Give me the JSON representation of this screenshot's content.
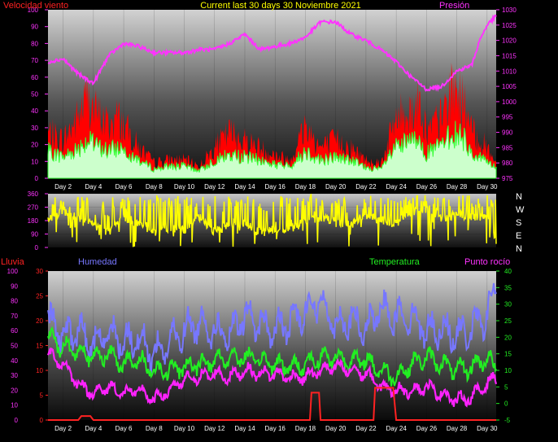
{
  "title": "Current last 30 days 30 Noviembre 2021",
  "colors": {
    "wind_gust": "#ff0000",
    "wind_avg": "#33ff33",
    "wind_fill": "#ccffcc",
    "pressure": "#ff33ff",
    "direction": "#ffff00",
    "humidity": "#7777ff",
    "temperature": "#22ee22",
    "dewpoint": "#ff22ff",
    "rain": "#ff2222",
    "axis_text": "#ff33ff"
  },
  "x_ticks": [
    "Day 2",
    "Day 4",
    "Day 6",
    "Day 8",
    "Day 10",
    "Day 12",
    "Day 14",
    "Day 16",
    "Day 18",
    "Day 20",
    "Day 22",
    "Day 24",
    "Day 26",
    "Day 28",
    "Day 30"
  ],
  "chart_data": [
    {
      "type": "area",
      "id": "wind_pressure",
      "left_label": "Velocidad viento",
      "right_label": "Presión",
      "y_left_range": [
        0,
        100
      ],
      "y_left_ticks": [
        "0",
        "10",
        "20",
        "30",
        "40",
        "50",
        "60",
        "70",
        "80",
        "90",
        "100"
      ],
      "y_right_range": [
        975,
        1030
      ],
      "y_right_ticks": [
        "975",
        "980",
        "985",
        "990",
        "995",
        "1000",
        "1005",
        "1010",
        "1015",
        "1020",
        "1025",
        "1030"
      ],
      "x_range": [
        1,
        30.6
      ],
      "series": [
        {
          "role": "wind_gust",
          "x": [
            1,
            2,
            3,
            3.6,
            4,
            5,
            5.6,
            6,
            7,
            8,
            9,
            10,
            11,
            12,
            13,
            14,
            15,
            16,
            17,
            18,
            19,
            20,
            21,
            22,
            23,
            23.5,
            24,
            25,
            25.6,
            26,
            27,
            27.6,
            28,
            28.6,
            29,
            30,
            30.6
          ],
          "values": [
            30,
            25,
            40,
            55,
            45,
            35,
            40,
            35,
            20,
            10,
            12,
            12,
            8,
            20,
            30,
            25,
            20,
            15,
            12,
            35,
            20,
            25,
            20,
            12,
            10,
            25,
            40,
            45,
            50,
            30,
            40,
            55,
            60,
            45,
            30,
            20,
            10
          ]
        },
        {
          "role": "wind_avg",
          "x": [
            1,
            2,
            3,
            3.6,
            4,
            5,
            5.6,
            6,
            7,
            8,
            9,
            10,
            11,
            12,
            13,
            14,
            15,
            16,
            17,
            18,
            19,
            20,
            21,
            22,
            23,
            23.5,
            24,
            25,
            25.6,
            26,
            27,
            27.6,
            28,
            28.6,
            29,
            30,
            30.6
          ],
          "values": [
            18,
            14,
            20,
            25,
            22,
            18,
            20,
            20,
            12,
            6,
            8,
            8,
            5,
            12,
            15,
            14,
            12,
            9,
            8,
            18,
            12,
            14,
            12,
            7,
            6,
            14,
            20,
            24,
            26,
            16,
            22,
            28,
            30,
            24,
            16,
            12,
            6
          ]
        },
        {
          "role": "pressure",
          "x": [
            1,
            2,
            3,
            4,
            5,
            6,
            7,
            8,
            9,
            10,
            11,
            12,
            13,
            14,
            15,
            16,
            17,
            18,
            19,
            20,
            21,
            22,
            23,
            24,
            25,
            26,
            27,
            28,
            29,
            29.5,
            30,
            30.6
          ],
          "values": [
            1013,
            1014,
            1009,
            1006,
            1015,
            1019,
            1018,
            1016,
            1016,
            1016,
            1017,
            1017,
            1019,
            1022,
            1017,
            1018,
            1019,
            1021,
            1026,
            1026,
            1022,
            1020,
            1017,
            1013,
            1008,
            1004,
            1005,
            1010,
            1012,
            1020,
            1025,
            1028
          ]
        }
      ]
    },
    {
      "type": "line",
      "id": "wind_direction",
      "y_range": [
        0,
        360
      ],
      "y_ticks": [
        "0",
        "90",
        "180",
        "270",
        "360"
      ],
      "cardinal_labels": [
        "N",
        "W",
        "S",
        "E",
        "N"
      ],
      "x_range": [
        1,
        30.6
      ],
      "series": [
        {
          "role": "direction",
          "x": [
            1,
            2,
            3,
            4,
            5,
            6,
            7,
            8,
            9,
            10,
            11,
            12,
            13,
            14,
            15,
            16,
            17,
            18,
            19,
            20,
            21,
            22,
            23,
            24,
            25,
            26,
            27,
            28,
            29,
            30,
            30.6
          ],
          "values": [
            180,
            240,
            200,
            150,
            100,
            200,
            160,
            120,
            120,
            120,
            200,
            100,
            160,
            160,
            100,
            120,
            120,
            180,
            200,
            180,
            150,
            220,
            180,
            160,
            240,
            250,
            200,
            220,
            200,
            210,
            40
          ]
        }
      ]
    },
    {
      "type": "line",
      "id": "humidity_temp",
      "left_labels": [
        "Lluvia",
        "Humedad"
      ],
      "right_labels": [
        "Temperatura",
        "Punto rocío"
      ],
      "y_rain_range": [
        0,
        30
      ],
      "y_rain_ticks": [
        "0",
        "5",
        "10",
        "15",
        "20",
        "25",
        "30"
      ],
      "y_humidity_range": [
        0,
        100
      ],
      "y_humidity_ticks": [
        "0",
        "10",
        "20",
        "30",
        "40",
        "50",
        "60",
        "70",
        "80",
        "90",
        "100"
      ],
      "y_temp_range": [
        -5,
        40
      ],
      "y_temp_ticks": [
        "-5",
        "0",
        "5",
        "10",
        "15",
        "20",
        "25",
        "30",
        "35",
        "40"
      ],
      "x_range": [
        1,
        30.6
      ],
      "series": [
        {
          "role": "humidity",
          "x": [
            1,
            2,
            3,
            4,
            5,
            6,
            7,
            8,
            9,
            10,
            11,
            12,
            13,
            14,
            15,
            16,
            17,
            18,
            19,
            20,
            21,
            22,
            23,
            24,
            25,
            26,
            27,
            28,
            29,
            30,
            30.6
          ],
          "values": [
            67,
            56,
            60,
            50,
            60,
            52,
            55,
            44,
            52,
            60,
            66,
            60,
            56,
            70,
            65,
            60,
            66,
            74,
            80,
            64,
            68,
            60,
            75,
            70,
            70,
            60,
            62,
            56,
            62,
            70,
            90
          ]
        },
        {
          "role": "temperature",
          "x": [
            1,
            2,
            3,
            4,
            5,
            6,
            7,
            8,
            9,
            10,
            11,
            12,
            13,
            14,
            15,
            16,
            17,
            18,
            19,
            20,
            21,
            22,
            23,
            24,
            25,
            26,
            27,
            28,
            29,
            30,
            30.6
          ],
          "values": [
            20,
            17,
            16,
            14,
            15,
            12,
            13,
            10,
            10,
            11,
            12,
            13,
            14,
            14,
            13,
            12,
            11,
            12,
            14,
            14,
            13,
            13,
            10,
            8,
            12,
            14,
            12,
            10,
            11,
            14,
            10
          ]
        },
        {
          "role": "dewpoint",
          "x": [
            1,
            2,
            3,
            4,
            5,
            6,
            7,
            8,
            9,
            10,
            11,
            12,
            13,
            14,
            15,
            16,
            17,
            18,
            19,
            20,
            21,
            22,
            23,
            24,
            25,
            26,
            27,
            28,
            29,
            30,
            30.6
          ],
          "values": [
            15,
            12,
            6,
            3,
            5,
            3,
            4,
            1,
            4,
            7,
            8,
            9,
            8,
            10,
            9,
            9,
            8,
            8,
            10,
            11,
            10,
            9,
            5,
            4,
            4,
            5,
            3,
            1,
            2,
            6,
            8
          ]
        },
        {
          "role": "rain",
          "x": [
            1,
            3,
            3.2,
            3.8,
            4,
            18.3,
            18.4,
            18.9,
            19,
            22.5,
            22.6,
            23.8,
            24,
            30.6
          ],
          "values": [
            0,
            0,
            0.8,
            0.8,
            0,
            0,
            5.5,
            5.5,
            0,
            0,
            6.5,
            6.5,
            0,
            0
          ]
        }
      ]
    }
  ]
}
